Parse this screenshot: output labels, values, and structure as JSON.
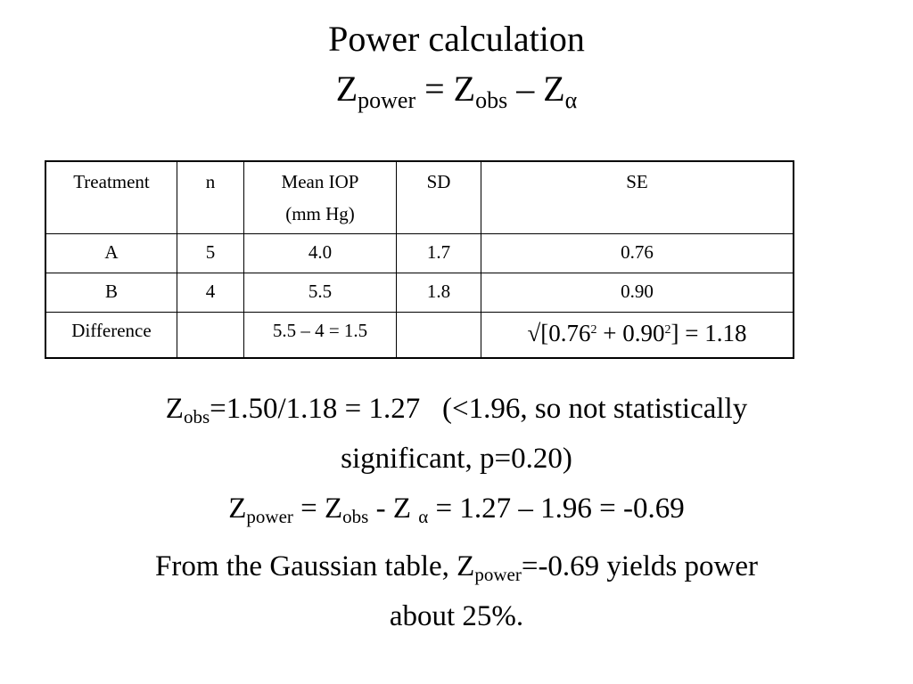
{
  "title": "Power calculation",
  "formula": [
    {
      "text": "Z"
    },
    {
      "sub": "power"
    },
    {
      "text": " = Z"
    },
    {
      "sub": "obs"
    },
    {
      "text": " – Z"
    },
    {
      "sub": "α"
    }
  ],
  "table": {
    "header": [
      "Treatment",
      "n",
      [
        {
          "line": "Mean IOP"
        },
        {
          "line": "(mm Hg)"
        }
      ],
      "SD",
      "SE"
    ],
    "rows": [
      [
        "A",
        "5",
        "4.0",
        "1.7",
        "0.76"
      ],
      [
        "B",
        "4",
        "5.5",
        "1.8",
        "0.90"
      ],
      [
        "Difference",
        null,
        "5.5 – 4 = 1.5",
        null,
        [
          {
            "text": "√[0.76"
          },
          {
            "sup": "2"
          },
          {
            "text": " + 0.90"
          },
          {
            "sup": "2"
          },
          {
            "text": "] = 1.18"
          }
        ]
      ]
    ]
  },
  "paragraphs": [
    {
      "lines": [
        [
          {
            "text": "Z"
          },
          {
            "sub": "obs"
          },
          {
            "text": "=1.50/1.18 = 1.27   (<1.96, so not statistically"
          }
        ],
        [
          {
            "text": "significant, p=0.20)"
          }
        ]
      ]
    },
    {
      "lines": [
        [
          {
            "text": "Z"
          },
          {
            "sub": "power"
          },
          {
            "text": " = Z"
          },
          {
            "sub": "obs"
          },
          {
            "text": " - Z "
          },
          {
            "sub": "α"
          },
          {
            "text": " = 1.27 – 1.96 = -0.69"
          }
        ]
      ]
    },
    {
      "lines": [
        [
          {
            "text": "From the Gaussian table, Z"
          },
          {
            "sub": "power"
          },
          {
            "text": "=-0.69 yields power"
          }
        ],
        [
          {
            "text": "about 25%."
          }
        ]
      ]
    }
  ]
}
